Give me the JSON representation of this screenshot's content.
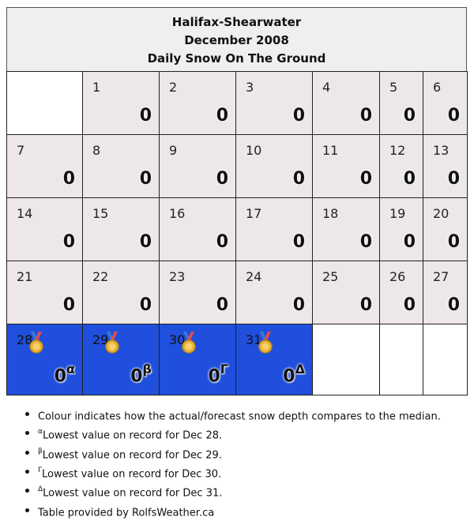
{
  "header": {
    "station": "Halifax-Shearwater",
    "month": "December 2008",
    "metric": "Daily Snow On The Ground"
  },
  "colors": {
    "header_bg": "#efefef",
    "normal_cell": "#ede7e8",
    "record_low_cell": "#1f4fdc",
    "empty_cell": "#ffffff"
  },
  "calendar": {
    "days": [
      {
        "day": "1",
        "value": "0",
        "marker": ""
      },
      {
        "day": "2",
        "value": "0",
        "marker": ""
      },
      {
        "day": "3",
        "value": "0",
        "marker": ""
      },
      {
        "day": "4",
        "value": "0",
        "marker": ""
      },
      {
        "day": "5",
        "value": "0",
        "marker": ""
      },
      {
        "day": "6",
        "value": "0",
        "marker": ""
      },
      {
        "day": "7",
        "value": "0",
        "marker": ""
      },
      {
        "day": "8",
        "value": "0",
        "marker": ""
      },
      {
        "day": "9",
        "value": "0",
        "marker": ""
      },
      {
        "day": "10",
        "value": "0",
        "marker": ""
      },
      {
        "day": "11",
        "value": "0",
        "marker": ""
      },
      {
        "day": "12",
        "value": "0",
        "marker": ""
      },
      {
        "day": "13",
        "value": "0",
        "marker": ""
      },
      {
        "day": "14",
        "value": "0",
        "marker": ""
      },
      {
        "day": "15",
        "value": "0",
        "marker": ""
      },
      {
        "day": "16",
        "value": "0",
        "marker": ""
      },
      {
        "day": "17",
        "value": "0",
        "marker": ""
      },
      {
        "day": "18",
        "value": "0",
        "marker": ""
      },
      {
        "day": "19",
        "value": "0",
        "marker": ""
      },
      {
        "day": "20",
        "value": "0",
        "marker": ""
      },
      {
        "day": "21",
        "value": "0",
        "marker": ""
      },
      {
        "day": "22",
        "value": "0",
        "marker": ""
      },
      {
        "day": "23",
        "value": "0",
        "marker": ""
      },
      {
        "day": "24",
        "value": "0",
        "marker": ""
      },
      {
        "day": "25",
        "value": "0",
        "marker": ""
      },
      {
        "day": "26",
        "value": "0",
        "marker": ""
      },
      {
        "day": "27",
        "value": "0",
        "marker": ""
      },
      {
        "day": "28",
        "value": "0",
        "marker": "α",
        "record": true,
        "icon": "medal-icon"
      },
      {
        "day": "29",
        "value": "0",
        "marker": "β",
        "record": true,
        "icon": "medal-icon"
      },
      {
        "day": "30",
        "value": "0",
        "marker": "Γ",
        "record": true,
        "icon": "medal-icon"
      },
      {
        "day": "31",
        "value": "0",
        "marker": "Δ",
        "record": true,
        "icon": "medal-icon"
      }
    ]
  },
  "notes": {
    "items": [
      {
        "marker": "",
        "text": "Colour indicates how the actual/forecast snow depth compares to the median."
      },
      {
        "marker": "α",
        "text": "Lowest value on record for Dec 28."
      },
      {
        "marker": "β",
        "text": "Lowest value on record for Dec 29."
      },
      {
        "marker": "Γ",
        "text": "Lowest value on record for Dec 30."
      },
      {
        "marker": "Δ",
        "text": "Lowest value on record for Dec 31."
      },
      {
        "marker": "",
        "text": "Table provided by RolfsWeather.ca"
      }
    ]
  }
}
